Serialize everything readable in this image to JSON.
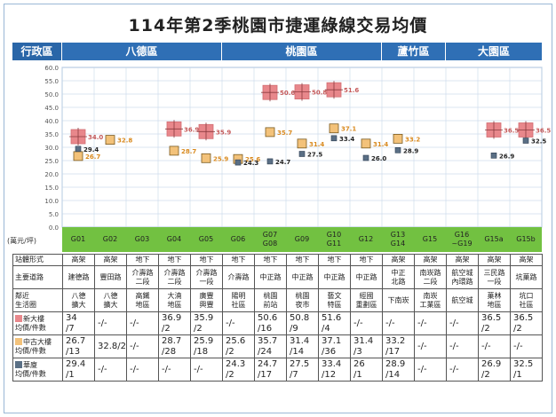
{
  "title": "114年第2季桃園市捷運綠線交易均價",
  "districts": {
    "header": "行政區",
    "items": [
      {
        "name": "八德區"
      },
      {
        "name": "桃園區"
      },
      {
        "name": "蘆竹區"
      },
      {
        "name": "大園區"
      }
    ]
  },
  "unit_label": "(萬元/坪)",
  "stations": [
    "G01",
    "G02",
    "G03",
    "G04",
    "G05",
    "G06",
    "G07\nG08",
    "G09",
    "G10\nG11",
    "G12",
    "G13\nG14",
    "G15",
    "G16\n~G19",
    "G15a",
    "G15b"
  ],
  "chart_data": {
    "type": "scatter",
    "x_categories": [
      "G01",
      "G02",
      "G03",
      "G04",
      "G05",
      "G06",
      "G07 G08",
      "G09",
      "G10 G11",
      "G12",
      "G13 G14",
      "G15",
      "G16 ~G19",
      "G15a",
      "G15b"
    ],
    "ylim": [
      0,
      60
    ],
    "ytick_step": 5,
    "grid": true,
    "series": [
      {
        "name": "新大樓",
        "color": "#e8878b",
        "marker": "square-cross",
        "values": [
          34.0,
          null,
          null,
          36.9,
          35.9,
          null,
          50.6,
          50.8,
          51.6,
          null,
          null,
          null,
          null,
          36.5,
          36.5
        ]
      },
      {
        "name": "中古大樓",
        "color": "#f3c27a",
        "marker": "square",
        "values": [
          26.7,
          32.8,
          null,
          28.7,
          25.9,
          25.6,
          35.7,
          31.4,
          37.1,
          31.4,
          33.2,
          null,
          null,
          null,
          null
        ]
      },
      {
        "name": "華廈",
        "color": "#5a6f85",
        "marker": "small-square",
        "values": [
          29.4,
          null,
          null,
          null,
          null,
          24.3,
          24.7,
          27.5,
          33.4,
          26.0,
          28.9,
          null,
          null,
          26.9,
          32.5
        ]
      }
    ],
    "labels": [
      [
        "34.0",
        null,
        null,
        "36.9",
        "35.9",
        null,
        "50.6",
        "50.8",
        "51.6",
        null,
        null,
        null,
        null,
        "36.5",
        "36.5"
      ],
      [
        "26.7",
        "32.8",
        null,
        "28.7",
        "25.9",
        "25.6",
        "35.7",
        "31.4",
        "37.1",
        "31.4",
        "33.2",
        null,
        null,
        null,
        null
      ],
      [
        "29.4",
        null,
        null,
        null,
        null,
        "24.3",
        "24.7",
        "27.5",
        "33.4",
        "26.0",
        "28.9",
        null,
        null,
        "26.9",
        "32.5"
      ]
    ]
  },
  "table": {
    "rows": [
      {
        "label": "站體形式",
        "cells": [
          "高架",
          "高架",
          "地下",
          "地下",
          "地下",
          "地下",
          "地下",
          "地下",
          "地下",
          "地下",
          "高架",
          "高架",
          "高架",
          "高架",
          "高架"
        ]
      },
      {
        "label": "主要道路",
        "cells": [
          "建德路",
          "豐田路",
          "介壽路\n二段",
          "介壽路\n二段",
          "介壽路\n一段",
          "介壽路",
          "中正路",
          "中正路",
          "中正路",
          "中正路",
          "中正\n北路",
          "南崁路\n二段",
          "航空城\n內環路",
          "三民路\n一段",
          "坑菓路"
        ]
      },
      {
        "label": "鄰近\n生活圈",
        "cells": [
          "八德\n擴大",
          "八德\n擴大",
          "高鐵\n地區",
          "大湳\n地區",
          "廣豐\n興豐",
          "陽明\n社區",
          "桃園\n前站",
          "桃園\n夜市",
          "藝文\n特區",
          "經國\n重劃區",
          "下南崁",
          "南崁\n工業區",
          "航空城",
          "菓林\n地區",
          "坑口\n社區"
        ]
      },
      {
        "label": "新大樓\n均價/件數",
        "legend": "#e8878b",
        "cells": [
          "34\n/7",
          "-/-",
          "-/-",
          "36.9\n/2",
          "35.9\n/2",
          "-/-",
          "50.6\n/16",
          "50.8\n/9",
          "51.6\n/4",
          "-/-",
          "-/-",
          "-/-",
          "-/-",
          "36.5\n/2",
          "36.5\n/2"
        ]
      },
      {
        "label": "中古大樓\n均價/件數",
        "legend": "#f3c27a",
        "cells": [
          "26.7\n/13",
          "32.8/2",
          "-/-",
          "28.7\n/28",
          "25.9\n/18",
          "25.6\n/2",
          "35.7\n/24",
          "31.4\n/14",
          "37.1\n/36",
          "31.4\n/3",
          "33.2\n/17",
          "-/-",
          "-/-",
          "-/-",
          "-/-"
        ]
      },
      {
        "label": "華廈\n均價/件數",
        "legend": "#5a6f85",
        "cells": [
          "29.4\n/1",
          "-/-",
          "-/-",
          "-/-",
          "-/-",
          "24.3\n/2",
          "24.7\n/17",
          "27.5\n/7",
          "33.4\n/12",
          "26\n/1",
          "28.9\n/14",
          "-/-",
          "-/-",
          "26.9\n/2",
          "32.5\n/1"
        ]
      }
    ]
  }
}
